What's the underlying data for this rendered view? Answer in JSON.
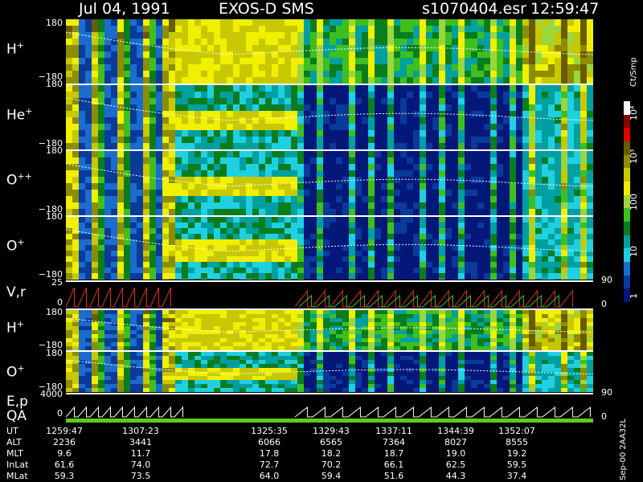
{
  "header": {
    "date": "Jul 04, 1991",
    "instrument": "EXOS-D SMS",
    "file": "s1070404.esr",
    "time": "12:59:47"
  },
  "colorbar": {
    "unit_label": "Ct/Smp",
    "ticks": [
      "1",
      "10",
      "100",
      "10³",
      "10⁴"
    ],
    "colors": [
      "#ffffff",
      "#8b0000",
      "#e10000",
      "#6b5b00",
      "#8d8d00",
      "#c8c800",
      "#f0f000",
      "#9bd63c",
      "#3fbf1f",
      "#0a7d1e",
      "#00a0a0",
      "#1fd0e0",
      "#1a6cd0",
      "#0a3a9a",
      "#04187a"
    ]
  },
  "source_label": "Sep-00 2AA32L",
  "panels": [
    {
      "id": "h-plus",
      "label": "H",
      "sup": "+",
      "ymax": "180",
      "ymin": "−180"
    },
    {
      "id": "he-plus",
      "label": "He",
      "sup": "+",
      "ymax": "180",
      "ymin": "−180"
    },
    {
      "id": "o-plus-plus",
      "label": "O",
      "sup": "++",
      "ymax": "180",
      "ymin": "−180"
    },
    {
      "id": "o-plus",
      "label": "O",
      "sup": "+",
      "ymax": "180",
      "ymin": "−180"
    },
    {
      "id": "vr",
      "label": "V,r",
      "sup": "",
      "ymax": "25",
      "ymin": "0",
      "rmax": "90",
      "rmin": "0"
    },
    {
      "id": "h-plus-2",
      "label": "H",
      "sup": "+",
      "ymax": "180",
      "ymin": "−180"
    },
    {
      "id": "o-plus-2",
      "label": "O",
      "sup": "+",
      "ymax": "180",
      "ymin": "−180",
      "rmax": "90"
    },
    {
      "id": "ep",
      "label": "E,p",
      "sup": "",
      "ymax": "4000",
      "ymin": "0",
      "rmin": "0"
    }
  ],
  "qa_label": "QA",
  "chart_data": {
    "type": "heatmap",
    "title": "Jul 04, 1991   EXOS-D SMS",
    "xlabel": "UT",
    "x": [
      "1259:47",
      "1307:23",
      "1325:35",
      "1329:43",
      "1337:11",
      "1344:39",
      "1352:07"
    ],
    "series": [
      {
        "name": "ALT",
        "values": [
          "2236",
          "3441",
          "6066",
          "6565",
          "7364",
          "8027",
          "8555"
        ]
      },
      {
        "name": "MLT",
        "values": [
          "9.6",
          "11.7",
          "17.8",
          "18.2",
          "18.7",
          "19.0",
          "19.2"
        ]
      },
      {
        "name": "InLat",
        "values": [
          "61.6",
          "74.0",
          "72.7",
          "70.2",
          "66.1",
          "62.5",
          "59.5"
        ]
      },
      {
        "name": "MLat",
        "values": [
          "59.3",
          "73.5",
          "64.0",
          "59.4",
          "51.6",
          "44.3",
          "37.4"
        ]
      }
    ],
    "ylim": [
      -180,
      180
    ]
  },
  "table": {
    "rows": [
      {
        "name": "UT",
        "values": [
          "1259:47",
          "1307:23",
          "1325:35",
          "1329:43",
          "1337:11",
          "1344:39",
          "1352:07"
        ]
      },
      {
        "name": "ALT",
        "values": [
          "2236",
          "3441",
          "6066",
          "6565",
          "7364",
          "8027",
          "8555"
        ]
      },
      {
        "name": "MLT",
        "values": [
          "9.6",
          "11.7",
          "17.8",
          "18.2",
          "18.7",
          "19.0",
          "19.2"
        ]
      },
      {
        "name": "InLat",
        "values": [
          "61.6",
          "74.0",
          "72.7",
          "70.2",
          "66.1",
          "62.5",
          "59.5"
        ]
      },
      {
        "name": "MLat",
        "values": [
          "59.3",
          "73.5",
          "64.0",
          "59.4",
          "51.6",
          "44.3",
          "37.4"
        ]
      }
    ]
  }
}
